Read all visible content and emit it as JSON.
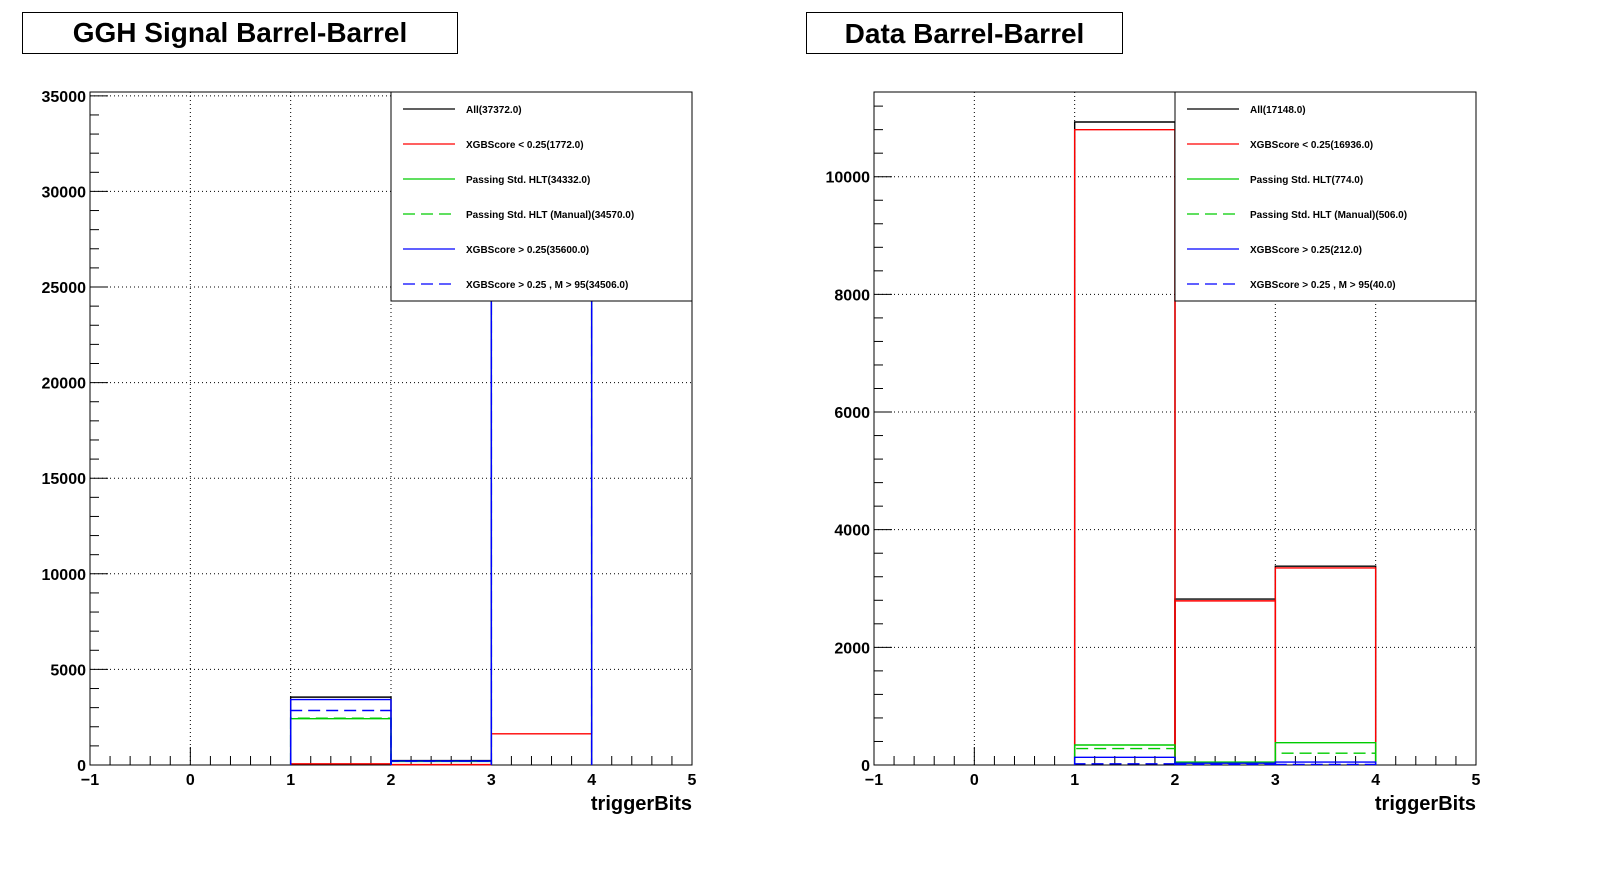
{
  "chart_data": [
    {
      "type": "step-histogram",
      "title": "GGH Signal Barrel-Barrel",
      "xlabel": "triggerBits",
      "ylabel": "",
      "xlim": [
        -1,
        5
      ],
      "ylim": [
        0,
        35200
      ],
      "xticks": [
        "−1",
        "0",
        "1",
        "2",
        "3",
        "4",
        "5"
      ],
      "yticks": [
        0,
        5000,
        10000,
        15000,
        20000,
        25000,
        30000,
        35000
      ],
      "grid": true,
      "legend_position": "top-right",
      "bins": [
        [
          1,
          2
        ],
        [
          2,
          3
        ],
        [
          3,
          4
        ]
      ],
      "series": [
        {
          "name": "All(37372.0)",
          "color": "#000000",
          "dash": false,
          "values": [
            3550,
            230,
            33600
          ]
        },
        {
          "name": "XGBScore < 0.25(1772.0)",
          "color": "#ff0000",
          "dash": false,
          "values": [
            60,
            20,
            1630
          ]
        },
        {
          "name": "Passing Std. HLT(34332.0)",
          "color": "#00cc00",
          "dash": false,
          "values": [
            2420,
            190,
            31700
          ]
        },
        {
          "name": "Passing Std. HLT (Manual)(34570.0)",
          "color": "#00cc00",
          "dash": true,
          "values": [
            2450,
            200,
            31900
          ]
        },
        {
          "name": "XGBScore > 0.25(35600.0)",
          "color": "#0000ff",
          "dash": false,
          "values": [
            3420,
            210,
            31970
          ]
        },
        {
          "name": "XGBScore > 0.25 , M > 95(34506.0)",
          "color": "#0000ff",
          "dash": true,
          "values": [
            2850,
            200,
            31450
          ]
        }
      ]
    },
    {
      "type": "step-histogram",
      "title": "Data Barrel-Barrel",
      "xlabel": "triggerBits",
      "ylabel": "",
      "xlim": [
        -1,
        5
      ],
      "ylim": [
        0,
        11440
      ],
      "xticks": [
        "−1",
        "0",
        "1",
        "2",
        "3",
        "4",
        "5"
      ],
      "yticks": [
        0,
        2000,
        4000,
        6000,
        8000,
        10000
      ],
      "grid": true,
      "legend_position": "top-right",
      "bins": [
        [
          1,
          2
        ],
        [
          2,
          3
        ],
        [
          3,
          4
        ]
      ],
      "series": [
        {
          "name": "All(17148.0)",
          "color": "#000000",
          "dash": false,
          "values": [
            10930,
            2820,
            3380
          ]
        },
        {
          "name": "XGBScore < 0.25(16936.0)",
          "color": "#ff0000",
          "dash": false,
          "values": [
            10800,
            2790,
            3350
          ]
        },
        {
          "name": "Passing Std. HLT(774.0)",
          "color": "#00cc00",
          "dash": false,
          "values": [
            340,
            50,
            380
          ]
        },
        {
          "name": "Passing Std. HLT (Manual)(506.0)",
          "color": "#00cc00",
          "dash": true,
          "values": [
            280,
            30,
            200
          ]
        },
        {
          "name": "XGBScore > 0.25(212.0)",
          "color": "#0000ff",
          "dash": false,
          "values": [
            130,
            30,
            50
          ]
        },
        {
          "name": "XGBScore > 0.25 , M > 95(40.0)",
          "color": "#0000ff",
          "dash": true,
          "values": [
            20,
            10,
            10
          ]
        }
      ]
    }
  ]
}
